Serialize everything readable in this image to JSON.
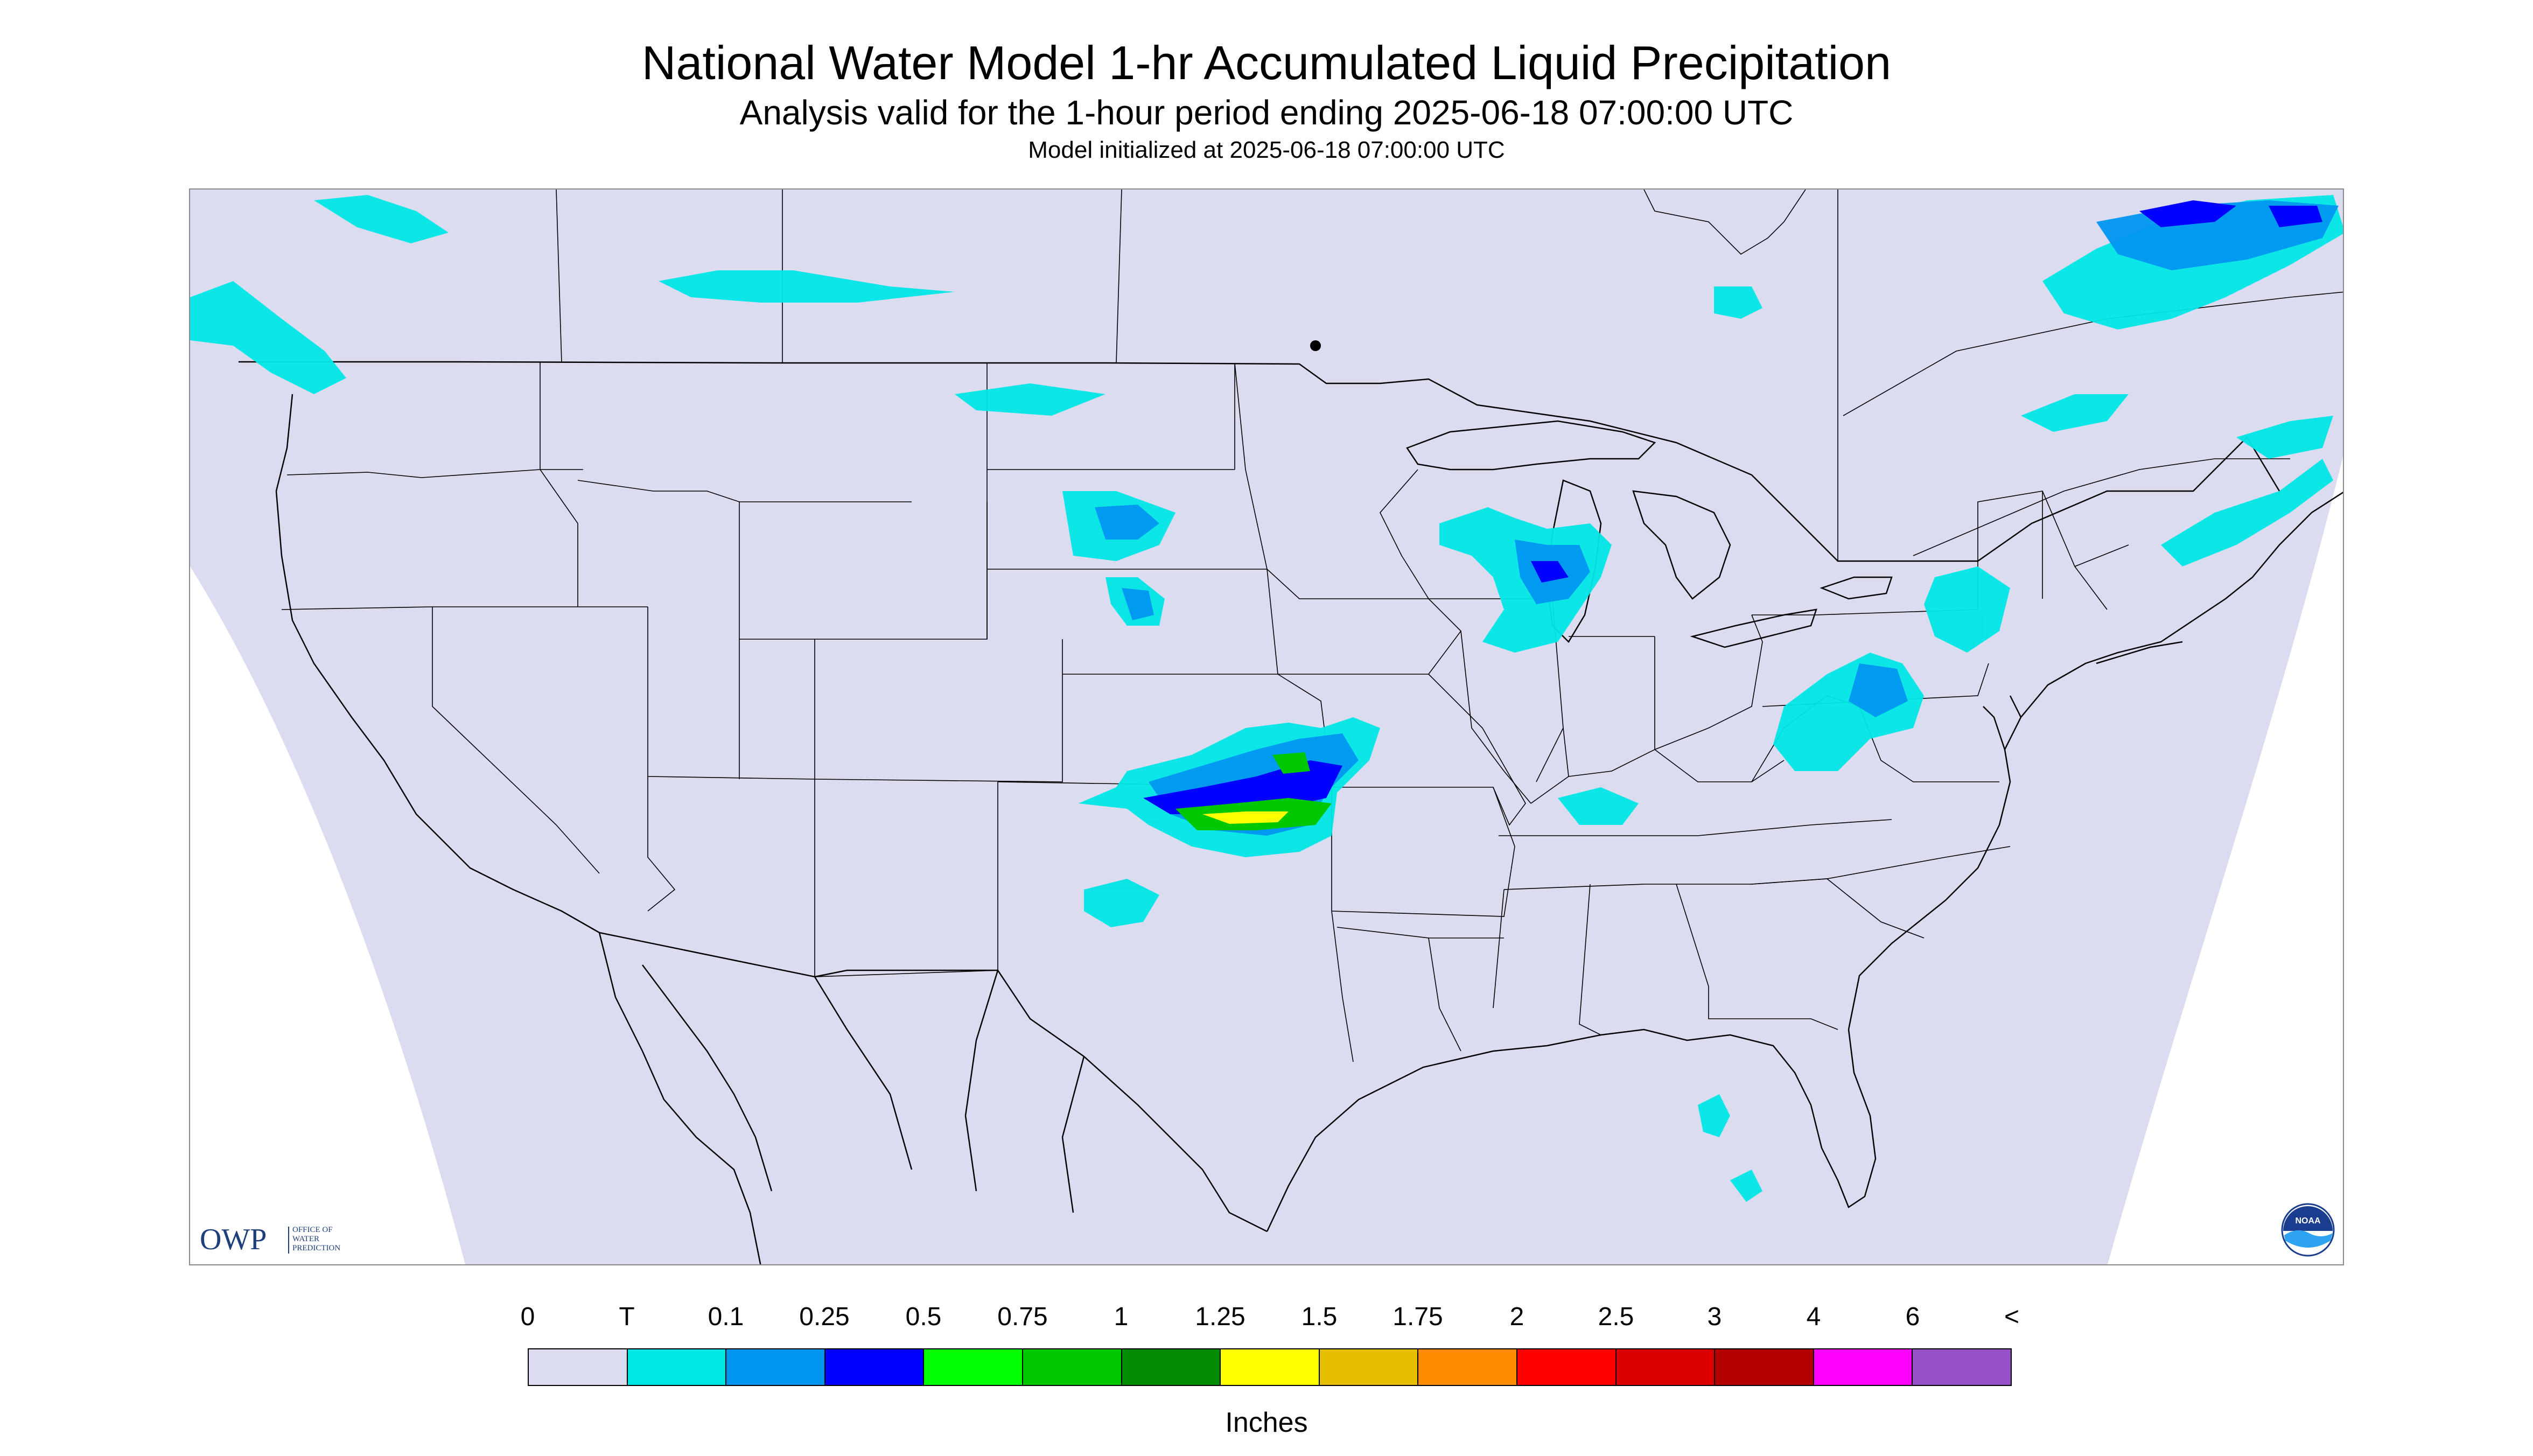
{
  "header": {
    "title": "National Water Model 1-hr Accumulated Liquid Precipitation",
    "subtitle": "Analysis valid for the 1-hour period ending 2025-06-18 07:00:00 UTC",
    "init_line": "Model initialized at 2025-06-18 07:00:00 UTC"
  },
  "map": {
    "projection": "Lambert conformal",
    "basemap": "Contiguous United States with state boundaries, southern Canada and northern Mexico",
    "outside_domain_color": "#ffffff",
    "no_precip_color": "#dcdcf0",
    "boundary_color": "#000000"
  },
  "logos": {
    "owp": {
      "letters": "OWP",
      "subtext": [
        "OFFICE OF",
        "WATER",
        "PREDICTION"
      ],
      "color": "#1f3f7a"
    },
    "noaa": {
      "text": "NOAA",
      "icon": "noaa-logo-icon"
    }
  },
  "legend": {
    "labels": [
      "0",
      "T",
      "0.1",
      "0.25",
      "0.5",
      "0.75",
      "1",
      "1.25",
      "1.5",
      "1.75",
      "2",
      "2.5",
      "3",
      "4",
      "6",
      "<"
    ],
    "colors": [
      "#dcdcf0",
      "#00e6e6",
      "#0096f0",
      "#0000ff",
      "#00ff00",
      "#00c800",
      "#008c00",
      "#ffff00",
      "#e6be00",
      "#ff8c00",
      "#ff0000",
      "#dc0000",
      "#b40000",
      "#ff00ff",
      "#9650c8"
    ],
    "units": "Inches"
  },
  "precipitation_areas": [
    {
      "region": "Kansas-Oklahoma border",
      "max_category": "1"
    },
    {
      "region": "eastern Kansas / southwest Missouri",
      "max_category": "0.75"
    },
    {
      "region": "northern Oklahoma",
      "max_category": "0.25"
    },
    {
      "region": "southern South Dakota",
      "max_category": "0.5"
    },
    {
      "region": "north-central Nebraska",
      "max_category": "0.5"
    },
    {
      "region": "Lake Michigan / Wisconsin / Illinois",
      "max_category": "0.5"
    },
    {
      "region": "Pennsylvania / Maryland / Virginia",
      "max_category": "0.25"
    },
    {
      "region": "New England",
      "max_category": "0.1"
    },
    {
      "region": "Ontario / Quebec",
      "max_category": "0.25"
    },
    {
      "region": "northern Quebec",
      "max_category": "0.5"
    },
    {
      "region": "Montana / Saskatchewan",
      "max_category": "0.25"
    },
    {
      "region": "British Columbia / Washington",
      "max_category": "0.1"
    },
    {
      "region": "Kentucky / Tennessee",
      "max_category": "0.1"
    },
    {
      "region": "Florida",
      "max_category": "0.1"
    }
  ]
}
